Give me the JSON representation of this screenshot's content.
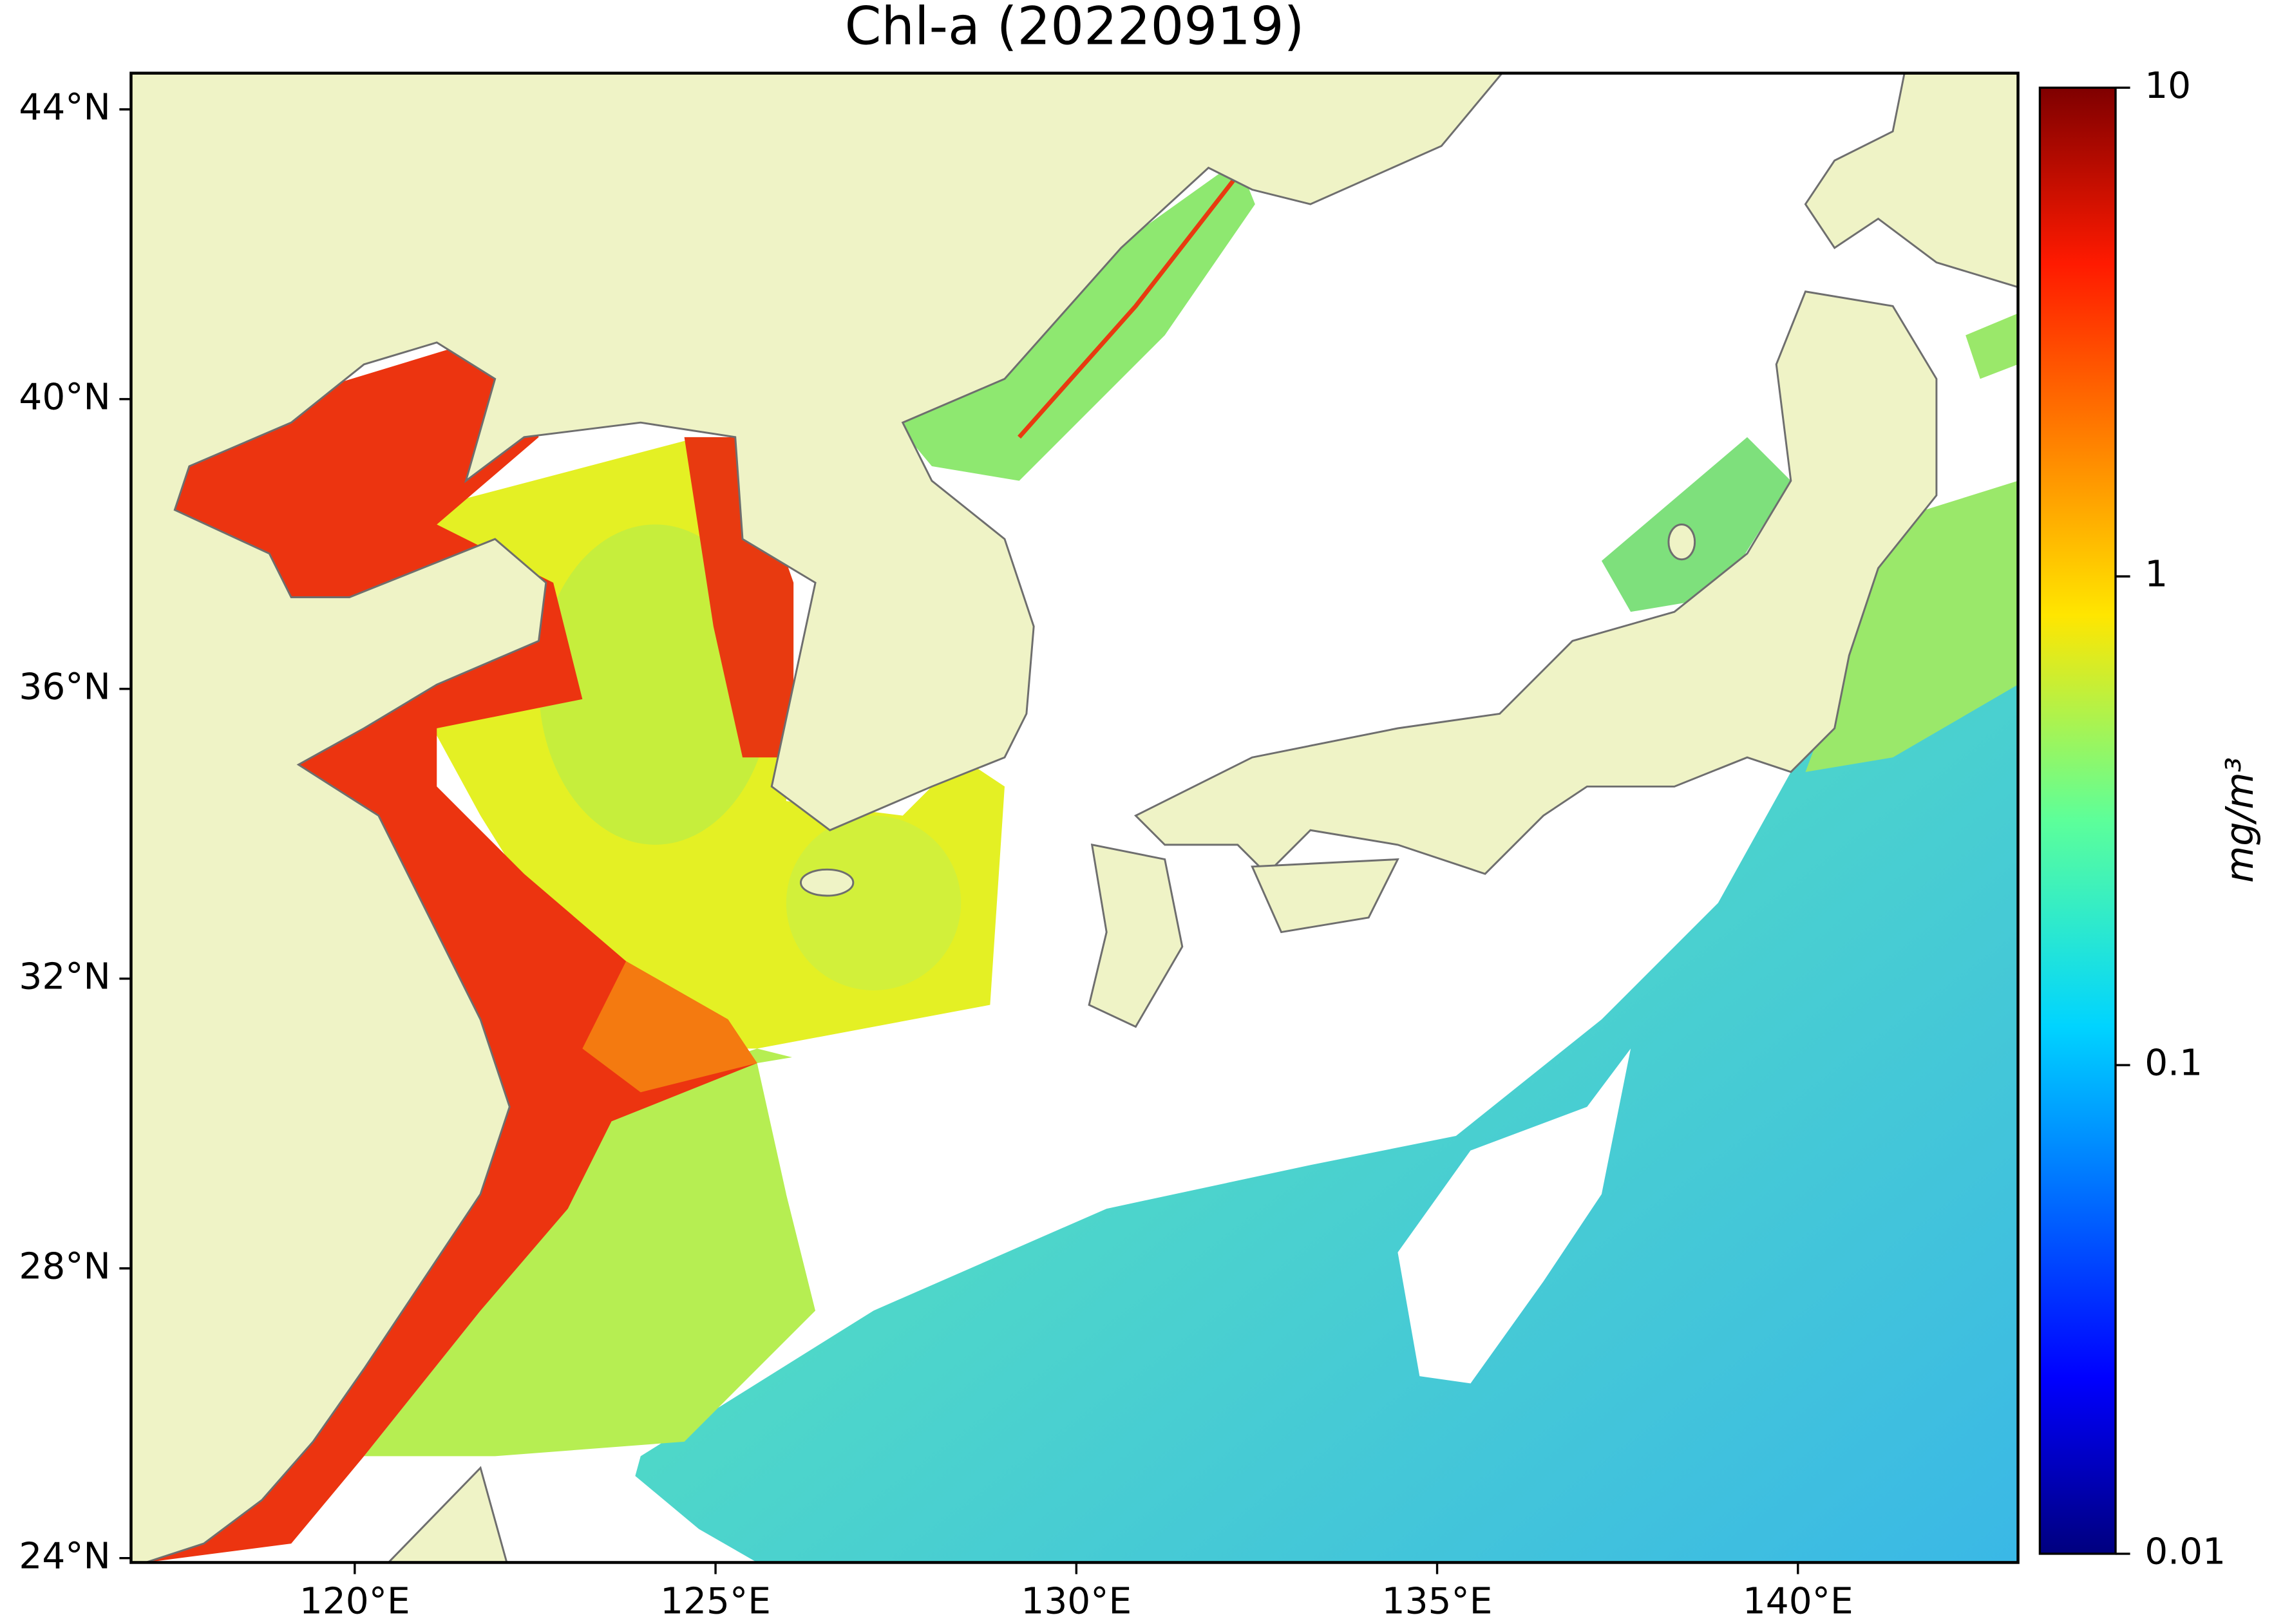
{
  "chart_data": {
    "type": "map",
    "title": "Chl-a (20220919)",
    "xlim": [
      116.9,
      143.05
    ],
    "ylim": [
      23.94,
      44.5
    ],
    "xticks": [
      {
        "value": 120,
        "label": "120°E"
      },
      {
        "value": 125,
        "label": "125°E"
      },
      {
        "value": 130,
        "label": "130°E"
      },
      {
        "value": 135,
        "label": "135°E"
      },
      {
        "value": 140,
        "label": "140°E"
      }
    ],
    "yticks": [
      {
        "value": 24,
        "label": "24°N"
      },
      {
        "value": 28,
        "label": "28°N"
      },
      {
        "value": 32,
        "label": "32°N"
      },
      {
        "value": 36,
        "label": "36°N"
      },
      {
        "value": 40,
        "label": "40°N"
      },
      {
        "value": 44,
        "label": "44°N"
      }
    ],
    "colorbar": {
      "label": "mg/m³",
      "scale": "log",
      "lim": [
        0.01,
        10
      ],
      "ticks": [
        0.01,
        0.1,
        1,
        10
      ]
    }
  }
}
